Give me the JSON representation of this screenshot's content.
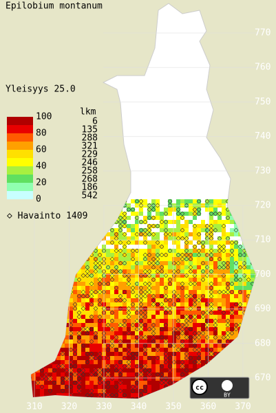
{
  "title": "Epilobium montanum",
  "frequency": "Yleisyys  25.0",
  "legend": {
    "count_header": "lkm",
    "percent_labels": [
      100,
      80,
      60,
      40,
      20,
      0
    ],
    "colors": [
      "#b00000",
      "#e80000",
      "#ff5a00",
      "#ffa000",
      "#ffe000",
      "#ffff00",
      "#a8f040",
      "#60e060",
      "#90ffb0",
      "#c8ffff",
      "#ffffff"
    ],
    "counts": [
      6,
      135,
      288,
      321,
      229,
      246,
      258,
      268,
      186,
      542
    ]
  },
  "observations": "Havainto 1409",
  "grid": {
    "y_labels": [
      770,
      760,
      750,
      740,
      730,
      720,
      710,
      700,
      690,
      680,
      670
    ],
    "x_labels": [
      310,
      320,
      330,
      340,
      350,
      360,
      370
    ]
  },
  "license": "BY"
}
